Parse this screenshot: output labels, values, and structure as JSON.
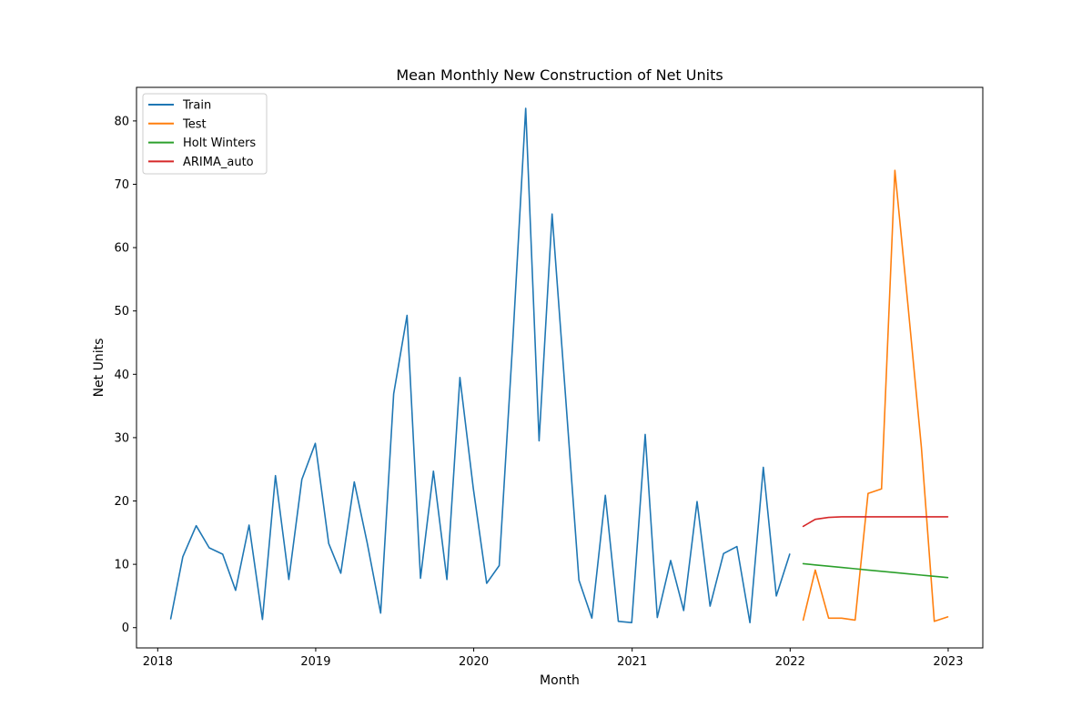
{
  "chart_data": {
    "type": "line",
    "title": "Mean Monthly New Construction of Net Units",
    "xlabel": "Month",
    "ylabel": "Net Units",
    "xlim": [
      "2017-11-13",
      "2023-03-22"
    ],
    "ylim": [
      -3.2,
      85.3
    ],
    "x_ticks": [
      "2018",
      "2019",
      "2020",
      "2021",
      "2022",
      "2023"
    ],
    "y_ticks": [
      0,
      10,
      20,
      30,
      40,
      50,
      60,
      70,
      80
    ],
    "grid": false,
    "legend": "top-left",
    "series": [
      {
        "name": "Train",
        "color": "#1f77b4",
        "x": [
          "2018-01-31",
          "2018-02-28",
          "2018-03-31",
          "2018-04-30",
          "2018-05-31",
          "2018-06-30",
          "2018-07-31",
          "2018-08-31",
          "2018-09-30",
          "2018-10-31",
          "2018-11-30",
          "2018-12-31",
          "2019-01-31",
          "2019-02-28",
          "2019-03-31",
          "2019-04-30",
          "2019-05-31",
          "2019-06-30",
          "2019-07-31",
          "2019-08-31",
          "2019-09-30",
          "2019-10-31",
          "2019-11-30",
          "2019-12-31",
          "2020-01-31",
          "2020-02-29",
          "2020-03-31",
          "2020-04-30",
          "2020-05-31",
          "2020-06-30",
          "2020-07-31",
          "2020-08-31",
          "2020-09-30",
          "2020-10-31",
          "2020-11-30",
          "2020-12-31",
          "2021-01-31",
          "2021-02-28",
          "2021-03-31",
          "2021-04-30",
          "2021-05-31",
          "2021-06-30",
          "2021-07-31",
          "2021-08-31",
          "2021-09-30",
          "2021-10-31",
          "2021-11-30",
          "2021-12-31"
        ],
        "values": [
          1.4,
          11.2,
          16.1,
          12.6,
          11.6,
          5.9,
          16.2,
          1.3,
          24.0,
          7.6,
          23.4,
          29.1,
          13.3,
          8.6,
          23.0,
          13.4,
          2.3,
          36.9,
          49.3,
          7.8,
          24.7,
          7.6,
          39.5,
          22.0,
          7.0,
          9.8,
          45.0,
          82.0,
          29.5,
          65.3,
          36.7,
          7.5,
          1.5,
          20.9,
          1.0,
          0.8,
          30.5,
          1.6,
          10.6,
          2.7,
          19.9,
          3.4,
          11.7,
          12.8,
          0.8,
          25.3,
          5.0,
          11.6
        ]
      },
      {
        "name": "Test",
        "color": "#ff7f0e",
        "x": [
          "2022-01-31",
          "2022-02-28",
          "2022-03-31",
          "2022-04-30",
          "2022-05-31",
          "2022-06-30",
          "2022-07-31",
          "2022-08-31",
          "2022-09-30",
          "2022-10-31",
          "2022-11-30",
          "2022-12-31"
        ],
        "values": [
          1.2,
          9.1,
          1.5,
          1.5,
          1.2,
          21.2,
          21.9,
          72.2,
          51.0,
          28.5,
          1.0,
          1.7
        ]
      },
      {
        "name": "Holt Winters",
        "color": "#2ca02c",
        "x": [
          "2022-01-31",
          "2022-02-28",
          "2022-03-31",
          "2022-04-30",
          "2022-05-31",
          "2022-06-30",
          "2022-07-31",
          "2022-08-31",
          "2022-09-30",
          "2022-10-31",
          "2022-11-30",
          "2022-12-31"
        ],
        "values": [
          10.1,
          9.9,
          9.7,
          9.5,
          9.3,
          9.1,
          8.9,
          8.7,
          8.5,
          8.3,
          8.1,
          7.9
        ]
      },
      {
        "name": "ARIMA_auto",
        "color": "#d62728",
        "x": [
          "2022-01-31",
          "2022-02-28",
          "2022-03-31",
          "2022-04-30",
          "2022-05-31",
          "2022-06-30",
          "2022-07-31",
          "2022-08-31",
          "2022-09-30",
          "2022-10-31",
          "2022-11-30",
          "2022-12-31"
        ],
        "values": [
          16.0,
          17.1,
          17.4,
          17.5,
          17.5,
          17.5,
          17.5,
          17.5,
          17.5,
          17.5,
          17.5,
          17.5
        ]
      }
    ]
  }
}
